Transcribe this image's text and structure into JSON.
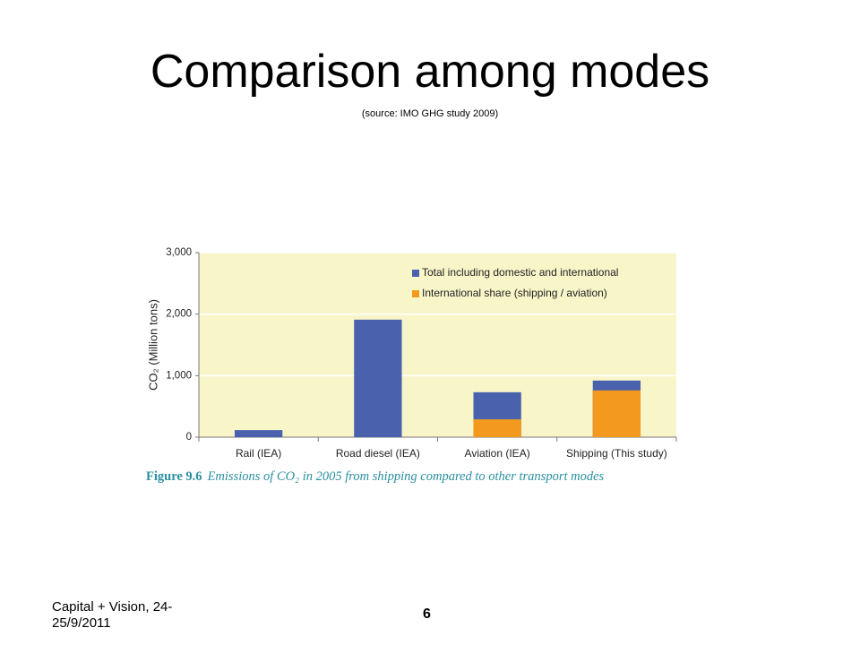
{
  "slide": {
    "title": "Comparison among modes",
    "subtitle": "(source: IMO GHG study 2009)",
    "footer": "Capital + Vision, 24-25/9/2011",
    "page_number": "6"
  },
  "chart_data": {
    "type": "bar",
    "overlap": true,
    "categories": [
      "Rail (IEA)",
      "Road diesel (IEA)",
      "Aviation (IEA)",
      "Shipping (This study)"
    ],
    "series": [
      {
        "name": "Total including domestic and international",
        "color": "#4a62ad",
        "values": [
          115,
          1910,
          730,
          920
        ]
      },
      {
        "name": "International share (shipping / aviation)",
        "color": "#f39a1e",
        "values": [
          null,
          null,
          290,
          760
        ]
      }
    ],
    "ylabel": "CO₂ (Million tons)",
    "ylim": [
      0,
      3000
    ],
    "yticks": [
      0,
      {
        "value": 1000,
        "label": "1,000"
      },
      {
        "value": 2000,
        "label": "2,000"
      },
      {
        "value": 3000,
        "label": "3,000"
      }
    ],
    "grid": true,
    "legend": "upper right",
    "figure_label": "Figure 9.6",
    "caption": "Emissions of CO₂ in 2005 from shipping compared to other transport modes"
  }
}
